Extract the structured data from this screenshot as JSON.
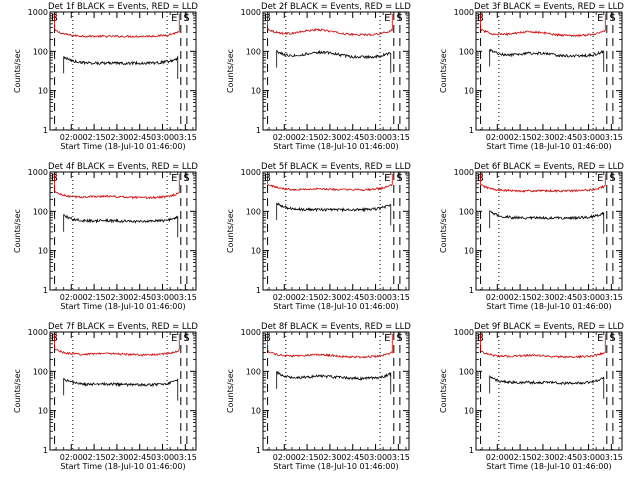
{
  "page": {
    "background": "#ffffff"
  },
  "colors": {
    "events": "#000000",
    "lld": "#d00000",
    "axis": "#000000"
  },
  "chart_data": [
    {
      "type": "line",
      "title": "Det 1f BLACK = Events, RED = LLD",
      "ylabel": "Counts/sec",
      "xlabel": "Start Time (18-Jul-10 01:46:00)",
      "xticks": [
        "02:00",
        "02:15",
        "02:30",
        "02:45",
        "03:00",
        "03:15"
      ],
      "yticks": [
        "1",
        "10",
        "100",
        "1000"
      ],
      "ylim": [
        1,
        1000
      ],
      "yscale": "log",
      "xlim": [
        "01:46",
        "03:22"
      ],
      "markers": {
        "B": "01:46",
        "E": "03:05",
        "S": "03:13"
      },
      "dashed_lines": [
        "01:49",
        "03:12",
        "03:16"
      ],
      "dotted_lines": [
        "02:01",
        "03:03"
      ],
      "series": [
        {
          "name": "LLD",
          "level": 240,
          "start": "01:49",
          "end": "03:11",
          "hump": 1.0,
          "spike": 900
        },
        {
          "name": "Events",
          "level": 50,
          "start": "01:55",
          "end": "03:10",
          "hump": 1.0
        }
      ]
    },
    {
      "type": "line",
      "title": "Det 2f BLACK = Events, RED = LLD",
      "ylabel": "Counts/sec",
      "xlabel": "Start Time (18-Jul-10 01:46:00)",
      "xticks": [
        "02:00",
        "02:15",
        "02:30",
        "02:45",
        "03:00",
        "03:15"
      ],
      "yticks": [
        "1",
        "10",
        "100",
        "1000"
      ],
      "ylim": [
        1,
        1000
      ],
      "yscale": "log",
      "xlim": [
        "01:46",
        "03:22"
      ],
      "markers": {
        "B": "01:46",
        "E": "03:05",
        "S": "03:13"
      },
      "dashed_lines": [
        "01:49",
        "03:12",
        "03:16"
      ],
      "dotted_lines": [
        "02:01",
        "03:03"
      ],
      "series": [
        {
          "name": "LLD",
          "level": 260,
          "start": "01:49",
          "end": "03:11",
          "hump": 1.35,
          "spike": 900
        },
        {
          "name": "Events",
          "level": 70,
          "start": "01:55",
          "end": "03:10",
          "hump": 1.35
        }
      ]
    },
    {
      "type": "line",
      "title": "Det 3f BLACK = Events, RED = LLD",
      "ylabel": "Counts/sec",
      "xlabel": "Start Time (18-Jul-10 01:46:00)",
      "xticks": [
        "02:00",
        "02:15",
        "02:30",
        "02:45",
        "03:00",
        "03:15"
      ],
      "yticks": [
        "1",
        "10",
        "100",
        "1000"
      ],
      "ylim": [
        1,
        1000
      ],
      "yscale": "log",
      "xlim": [
        "01:46",
        "03:22"
      ],
      "markers": {
        "B": "01:46",
        "E": "03:05",
        "S": "03:13"
      },
      "dashed_lines": [
        "01:49",
        "03:12",
        "03:16"
      ],
      "dotted_lines": [
        "02:01",
        "03:03"
      ],
      "series": [
        {
          "name": "LLD",
          "level": 250,
          "start": "01:49",
          "end": "03:11",
          "hump": 1.25,
          "spike": 900
        },
        {
          "name": "Events",
          "level": 75,
          "start": "01:55",
          "end": "03:10",
          "hump": 1.2
        }
      ]
    },
    {
      "type": "line",
      "title": "Det 4f BLACK = Events, RED = LLD",
      "ylabel": "Counts/sec",
      "xlabel": "Start Time (18-Jul-10 01:46:00)",
      "xticks": [
        "02:00",
        "02:15",
        "02:30",
        "02:45",
        "03:00",
        "03:15"
      ],
      "yticks": [
        "1",
        "10",
        "100",
        "1000"
      ],
      "ylim": [
        1,
        1000
      ],
      "yscale": "log",
      "xlim": [
        "01:46",
        "03:22"
      ],
      "markers": {
        "B": "01:46",
        "E": "03:05",
        "S": "03:13"
      },
      "dashed_lines": [
        "01:49",
        "03:12",
        "03:16"
      ],
      "dotted_lines": [
        "02:01",
        "03:03"
      ],
      "series": [
        {
          "name": "LLD",
          "level": 220,
          "start": "01:49",
          "end": "03:11",
          "hump": 1.1,
          "spike": 900
        },
        {
          "name": "Events",
          "level": 55,
          "start": "01:55",
          "end": "03:10",
          "hump": 1.05
        }
      ]
    },
    {
      "type": "line",
      "title": "Det 5f BLACK = Events, RED = LLD",
      "ylabel": "Counts/sec",
      "xlabel": "Start Time (18-Jul-10 01:46:00)",
      "xticks": [
        "02:00",
        "02:15",
        "02:30",
        "02:45",
        "03:00",
        "03:15"
      ],
      "yticks": [
        "1",
        "10",
        "100",
        "1000"
      ],
      "ylim": [
        1,
        1000
      ],
      "yscale": "log",
      "xlim": [
        "01:46",
        "03:22"
      ],
      "markers": {
        "B": "01:46",
        "E": "03:05",
        "S": "03:13"
      },
      "dashed_lines": [
        "01:49",
        "03:12",
        "03:16"
      ],
      "dotted_lines": [
        "02:01",
        "03:03"
      ],
      "series": [
        {
          "name": "LLD",
          "level": 350,
          "start": "01:49",
          "end": "03:11",
          "hump": 1.05,
          "spike": 900
        },
        {
          "name": "Events",
          "level": 110,
          "start": "01:55",
          "end": "03:10",
          "hump": 1.0
        }
      ]
    },
    {
      "type": "line",
      "title": "Det 6f BLACK = Events, RED = LLD",
      "ylabel": "Counts/sec",
      "xlabel": "Start Time (18-Jul-10 01:46:00)",
      "xticks": [
        "02:00",
        "02:15",
        "02:30",
        "02:45",
        "03:00",
        "03:15"
      ],
      "yticks": [
        "1",
        "10",
        "100",
        "1000"
      ],
      "ylim": [
        1,
        1000
      ],
      "yscale": "log",
      "xlim": [
        "01:46",
        "03:22"
      ],
      "markers": {
        "B": "01:46",
        "E": "03:05",
        "S": "03:13"
      },
      "dashed_lines": [
        "01:49",
        "03:12",
        "03:16"
      ],
      "dotted_lines": [
        "02:01",
        "03:03"
      ],
      "series": [
        {
          "name": "LLD",
          "level": 330,
          "start": "01:49",
          "end": "03:11",
          "hump": 1.0,
          "spike": 900
        },
        {
          "name": "Events",
          "level": 68,
          "start": "01:55",
          "end": "03:10",
          "hump": 1.0
        }
      ]
    },
    {
      "type": "line",
      "title": "Det 7f BLACK = Events, RED = LLD",
      "ylabel": "Counts/sec",
      "xlabel": "Start Time (18-Jul-10 01:46:00)",
      "xticks": [
        "02:00",
        "02:15",
        "02:30",
        "02:45",
        "03:00",
        "03:15"
      ],
      "yticks": [
        "1",
        "10",
        "100",
        "1000"
      ],
      "ylim": [
        1,
        1000
      ],
      "yscale": "log",
      "xlim": [
        "01:46",
        "03:22"
      ],
      "markers": {
        "B": "01:46",
        "E": "03:05",
        "S": "03:13"
      },
      "dashed_lines": [
        "01:49",
        "03:12",
        "03:16"
      ],
      "dotted_lines": [
        "02:01",
        "03:03"
      ],
      "series": [
        {
          "name": "LLD",
          "level": 260,
          "start": "01:49",
          "end": "03:11",
          "hump": 1.1,
          "spike": 900
        },
        {
          "name": "Events",
          "level": 45,
          "start": "01:55",
          "end": "03:10",
          "hump": 1.05
        }
      ]
    },
    {
      "type": "line",
      "title": "Det 8f BLACK = Events, RED = LLD",
      "ylabel": "Counts/sec",
      "xlabel": "Start Time (18-Jul-10 01:46:00)",
      "xticks": [
        "02:00",
        "02:15",
        "02:30",
        "02:45",
        "03:00",
        "03:15"
      ],
      "yticks": [
        "1",
        "10",
        "100",
        "1000"
      ],
      "ylim": [
        1,
        1000
      ],
      "yscale": "log",
      "xlim": [
        "01:46",
        "03:22"
      ],
      "markers": {
        "B": "01:46",
        "E": "03:05",
        "S": "03:13"
      },
      "dashed_lines": [
        "01:49",
        "03:12",
        "03:16"
      ],
      "dotted_lines": [
        "02:01",
        "03:03"
      ],
      "series": [
        {
          "name": "LLD",
          "level": 230,
          "start": "01:49",
          "end": "03:11",
          "hump": 1.15,
          "spike": 900
        },
        {
          "name": "Events",
          "level": 65,
          "start": "01:55",
          "end": "03:10",
          "hump": 1.15
        }
      ]
    },
    {
      "type": "line",
      "title": "Det 9f BLACK = Events, RED = LLD",
      "ylabel": "Counts/sec",
      "xlabel": "Start Time (18-Jul-10 01:46:00)",
      "xticks": [
        "02:00",
        "02:15",
        "02:30",
        "02:45",
        "03:00",
        "03:15"
      ],
      "yticks": [
        "1",
        "10",
        "100",
        "1000"
      ],
      "ylim": [
        1,
        1000
      ],
      "yscale": "log",
      "xlim": [
        "01:46",
        "03:22"
      ],
      "markers": {
        "B": "01:46",
        "E": "03:05",
        "S": "03:13"
      },
      "dashed_lines": [
        "01:49",
        "03:12",
        "03:16"
      ],
      "dotted_lines": [
        "02:01",
        "03:03"
      ],
      "series": [
        {
          "name": "LLD",
          "level": 230,
          "start": "01:49",
          "end": "03:11",
          "hump": 1.1,
          "spike": 900
        },
        {
          "name": "Events",
          "level": 50,
          "start": "01:55",
          "end": "03:10",
          "hump": 1.05
        }
      ]
    }
  ]
}
